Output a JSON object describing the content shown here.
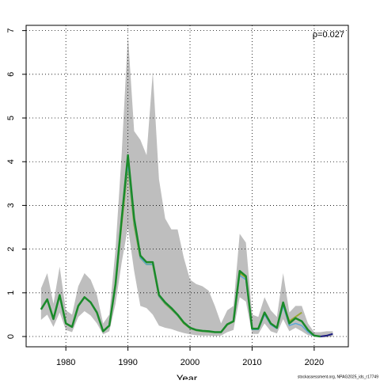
{
  "chart_data": {
    "type": "line",
    "annotation": "ρ=0.027",
    "x_label": "Year",
    "footer": "stockassessment.org, NPAG2025_ids_r17749",
    "x": [
      1976,
      1977,
      1978,
      1979,
      1980,
      1981,
      1982,
      1983,
      1984,
      1985,
      1986,
      1987,
      1988,
      1989,
      1990,
      1991,
      1992,
      1993,
      1994,
      1995,
      1996,
      1997,
      1998,
      1999,
      2000,
      2001,
      2002,
      2003,
      2004,
      2005,
      2006,
      2007,
      2008,
      2009,
      2010,
      2011,
      2012,
      2013,
      2014,
      2015,
      2016,
      2017,
      2018,
      2019,
      2020,
      2021,
      2022,
      2023
    ],
    "band_color": "#bebebe",
    "band_upper": [
      1.1,
      1.45,
      0.75,
      1.6,
      0.6,
      0.5,
      1.15,
      1.45,
      1.3,
      0.95,
      0.3,
      0.5,
      2.0,
      4.2,
      6.9,
      4.7,
      4.5,
      4.15,
      6.05,
      3.6,
      2.7,
      2.45,
      2.45,
      1.8,
      1.3,
      1.2,
      1.15,
      1.05,
      0.7,
      0.3,
      0.6,
      0.7,
      2.35,
      2.15,
      0.5,
      0.45,
      0.9,
      0.6,
      0.45,
      1.45,
      0.55,
      0.7,
      0.7,
      0.3,
      0.1,
      0.1,
      0.12,
      0.12
    ],
    "band_lower": [
      0.38,
      0.5,
      0.22,
      0.55,
      0.15,
      0.1,
      0.45,
      0.58,
      0.48,
      0.3,
      0.05,
      0.12,
      0.75,
      1.7,
      2.5,
      1.5,
      0.7,
      0.65,
      0.5,
      0.25,
      0.2,
      0.17,
      0.12,
      0.08,
      0.05,
      0.03,
      0.02,
      0.02,
      0.01,
      0.02,
      0.1,
      0.15,
      0.9,
      0.8,
      0.06,
      0.06,
      0.3,
      0.12,
      0.07,
      0.4,
      0.12,
      0.2,
      0.12,
      0.03,
      0.0,
      -0.02,
      -0.02,
      0.0
    ],
    "series": [
      {
        "color": "#9aa832",
        "width": 2,
        "values": [
          0.62,
          0.85,
          0.4,
          0.95,
          0.3,
          0.22,
          0.7,
          0.9,
          0.78,
          0.55,
          0.12,
          0.25,
          1.2,
          2.6,
          3.9,
          2.55,
          1.8,
          1.65,
          1.65,
          0.92,
          0.75,
          0.62,
          0.48,
          0.3,
          0.19,
          0.14,
          0.12,
          0.11,
          0.1,
          0.1,
          0.27,
          0.34,
          1.45,
          1.35,
          0.18,
          0.18,
          0.55,
          0.3,
          0.2,
          0.75,
          0.35,
          0.45,
          0.55,
          null,
          null,
          null,
          null,
          null
        ]
      },
      {
        "color": "#5aa7d6",
        "width": 1.5,
        "values": [
          0.62,
          0.85,
          0.4,
          0.95,
          0.3,
          0.22,
          0.7,
          0.9,
          0.78,
          0.55,
          0.12,
          0.25,
          1.2,
          2.65,
          3.95,
          2.6,
          1.8,
          1.65,
          1.65,
          0.92,
          0.76,
          0.63,
          0.48,
          0.31,
          0.19,
          0.14,
          0.12,
          0.11,
          0.1,
          0.1,
          0.27,
          0.34,
          1.4,
          1.3,
          0.16,
          0.16,
          0.5,
          0.27,
          0.18,
          0.7,
          0.25,
          0.3,
          0.25,
          0.1,
          0.01,
          null,
          null,
          null
        ]
      },
      {
        "color": "#1a8a2a",
        "width": 2.5,
        "values": [
          0.62,
          0.85,
          0.4,
          0.95,
          0.3,
          0.22,
          0.7,
          0.9,
          0.78,
          0.55,
          0.12,
          0.25,
          1.2,
          2.7,
          4.15,
          2.7,
          1.85,
          1.7,
          1.7,
          0.95,
          0.78,
          0.65,
          0.5,
          0.32,
          0.2,
          0.15,
          0.13,
          0.12,
          0.1,
          0.1,
          0.28,
          0.35,
          1.5,
          1.38,
          0.18,
          0.18,
          0.55,
          0.3,
          0.2,
          0.78,
          0.3,
          0.42,
          0.35,
          0.15,
          0.02,
          0.0,
          null,
          null
        ]
      },
      {
        "color": "#1a1a80",
        "width": 2,
        "values": [
          null,
          null,
          null,
          null,
          null,
          null,
          null,
          null,
          null,
          null,
          null,
          null,
          null,
          null,
          null,
          null,
          null,
          null,
          null,
          null,
          null,
          null,
          null,
          null,
          null,
          null,
          null,
          null,
          null,
          null,
          null,
          null,
          null,
          null,
          null,
          null,
          null,
          null,
          null,
          null,
          null,
          null,
          null,
          null,
          null,
          0.0,
          0.02,
          0.06
        ]
      }
    ],
    "xlim": [
      1973.6,
      2025.5
    ],
    "ylim": [
      -0.235,
      7.12
    ],
    "xticks": [
      1980,
      1990,
      2000,
      2010,
      2020
    ],
    "yticks": [
      0,
      1,
      2,
      3,
      4,
      5,
      6,
      7
    ],
    "grid": true
  }
}
